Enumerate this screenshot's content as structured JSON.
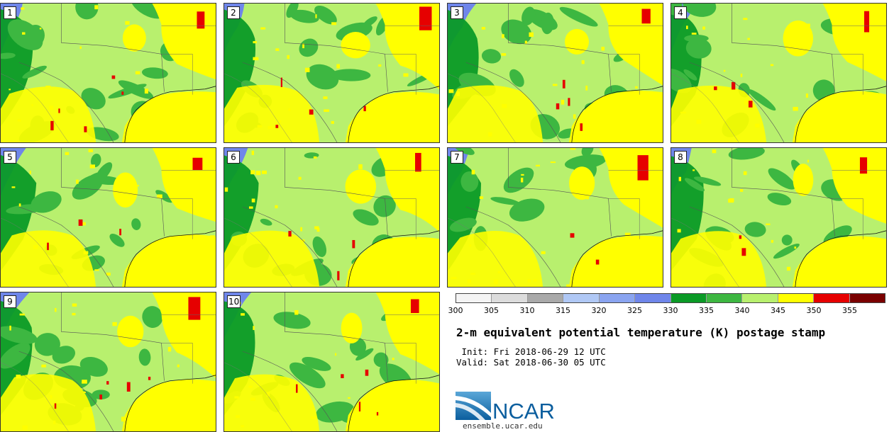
{
  "stamps": [
    {
      "label": "1"
    },
    {
      "label": "2"
    },
    {
      "label": "3"
    },
    {
      "label": "4"
    },
    {
      "label": "5"
    },
    {
      "label": "6"
    },
    {
      "label": "7"
    },
    {
      "label": "8"
    },
    {
      "label": "9"
    },
    {
      "label": "10"
    }
  ],
  "colorbar": {
    "ticks": [
      "300",
      "305",
      "310",
      "315",
      "320",
      "325",
      "330",
      "335",
      "340",
      "345",
      "350",
      "355"
    ],
    "colors": [
      "#f4f4f4",
      "#dcdcdc",
      "#a9a9a9",
      "#b0c8f5",
      "#8aa4f0",
      "#6f86ea",
      "#0a9a26",
      "#3db741",
      "#b8f06e",
      "#ffff00",
      "#e60000",
      "#7a0000"
    ]
  },
  "title": "2-m equivalent potential temperature (K) postage stamp",
  "init": " Init: Fri 2018-06-29 12 UTC",
  "valid": "Valid: Sat 2018-06-30 05 UTC",
  "branding": {
    "logo_text": "NCAR",
    "url": "ensemble.ucar.edu"
  }
}
